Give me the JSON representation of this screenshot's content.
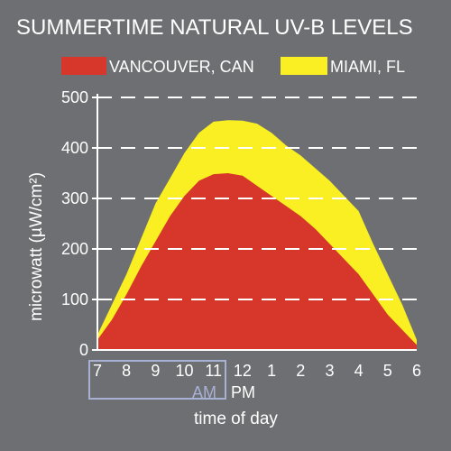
{
  "chart_data": {
    "type": "area",
    "title": "SUMMERTIME NATURAL UV-B LEVELS",
    "xlabel": "time of day",
    "ylabel": "microwatt (µW/cm²)",
    "x_ticks": [
      "7",
      "8",
      "9",
      "10",
      "11",
      "12",
      "1",
      "2",
      "3",
      "4",
      "5",
      "6"
    ],
    "am_label": "AM",
    "pm_label": "PM",
    "yticks": [
      0,
      100,
      200,
      300,
      400,
      500
    ],
    "ylim": [
      0,
      500
    ],
    "grid": "horizontal-dashed",
    "legend_position": "top",
    "x": [
      7,
      7.5,
      8,
      8.5,
      9,
      9.5,
      10,
      10.5,
      11,
      11.5,
      12,
      12.5,
      13,
      13.5,
      14,
      14.5,
      15,
      15.5,
      16,
      16.5,
      17,
      17.5,
      18
    ],
    "series": [
      {
        "name": "MIAMI, FL",
        "color": "#f9ef22",
        "values": [
          30,
          90,
          150,
          220,
          290,
          340,
          390,
          430,
          452,
          455,
          454,
          448,
          430,
          405,
          385,
          360,
          335,
          305,
          275,
          210,
          150,
          90,
          20
        ]
      },
      {
        "name": "VANCOUVER, CAN",
        "color": "#d7362b",
        "values": [
          20,
          60,
          110,
          165,
          215,
          265,
          305,
          335,
          348,
          350,
          345,
          325,
          305,
          285,
          265,
          240,
          210,
          180,
          150,
          110,
          70,
          40,
          10
        ]
      }
    ]
  }
}
